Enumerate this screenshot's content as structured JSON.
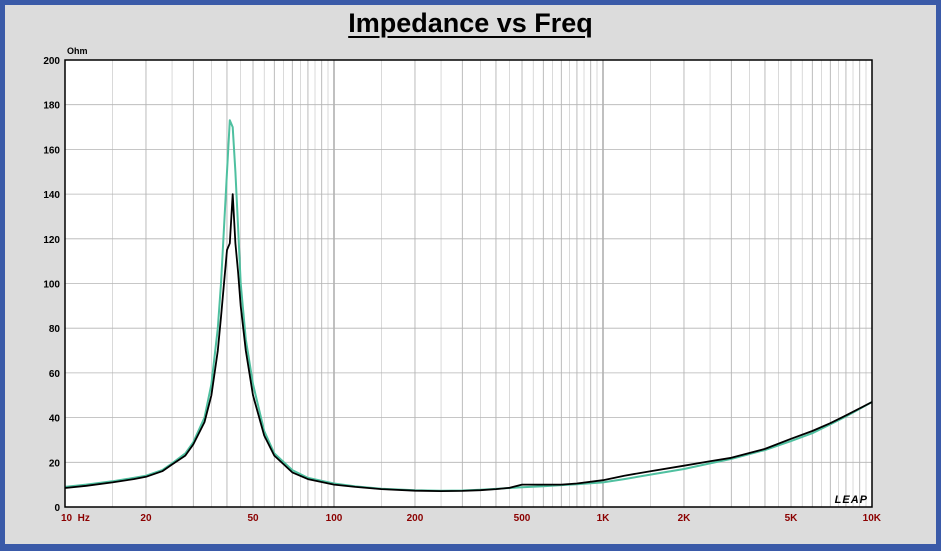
{
  "chart_data": {
    "type": "line",
    "title": "Impedance vs Freq",
    "ylabel": "Ohm",
    "xlabel": "",
    "xscale": "log",
    "xlim": [
      10,
      10000
    ],
    "ylim": [
      0,
      200
    ],
    "grid": true,
    "y_ticks": [
      0,
      20,
      40,
      60,
      80,
      100,
      120,
      140,
      160,
      180,
      200
    ],
    "y_tick_labels": [
      "0",
      "20",
      "40",
      "60",
      "80",
      "100",
      "120",
      "140",
      "160",
      "180",
      "200"
    ],
    "x_ticks": [
      10,
      20,
      50,
      100,
      200,
      500,
      1000,
      2000,
      5000,
      10000
    ],
    "x_tick_labels": [
      "10  Hz",
      "20",
      "50",
      "100",
      "200",
      "500",
      "1K",
      "2K",
      "5K",
      "10K"
    ],
    "logo_text": "LEAP",
    "colors": {
      "frame": "#3a5aa8",
      "plot_background": "#ffffff",
      "grid": "#b4b4b4",
      "x_tick_labels": "#8b0000",
      "series_1": "#000000",
      "series_2": "#4fc0a0"
    },
    "series": [
      {
        "color": "#000000",
        "x": [
          10,
          12,
          15,
          18,
          20,
          23,
          25,
          28,
          30,
          33,
          35,
          37,
          38,
          39,
          40,
          41,
          42,
          43,
          44,
          45,
          47,
          50,
          55,
          60,
          70,
          80,
          100,
          120,
          150,
          200,
          250,
          300,
          350,
          400,
          450,
          500,
          600,
          700,
          800,
          1000,
          1200,
          1500,
          2000,
          2500,
          3000,
          4000,
          5000,
          6000,
          7000,
          8000,
          10000
        ],
        "y": [
          8.5,
          9.5,
          11,
          12.5,
          13.5,
          16,
          19,
          23,
          28,
          38,
          50,
          70,
          85,
          100,
          115,
          118,
          140,
          118,
          105,
          90,
          70,
          50,
          32,
          23,
          15.5,
          12.5,
          10,
          9,
          8,
          7.3,
          7.1,
          7.2,
          7.5,
          8,
          8.6,
          10,
          10,
          10,
          10.5,
          12,
          14,
          16,
          18.5,
          20.5,
          22,
          26,
          30.5,
          34,
          37.5,
          41,
          47
        ]
      },
      {
        "color": "#4fc0a0",
        "x": [
          10,
          12,
          15,
          18,
          20,
          23,
          25,
          28,
          30,
          33,
          35,
          37,
          38,
          39,
          40,
          41,
          42,
          43,
          44,
          45,
          47,
          50,
          55,
          60,
          70,
          80,
          100,
          120,
          150,
          200,
          250,
          300,
          350,
          400,
          450,
          500,
          600,
          700,
          800,
          1000,
          1200,
          1500,
          2000,
          2500,
          3000,
          4000,
          5000,
          6000,
          7000,
          8000,
          10000
        ],
        "y": [
          9,
          10,
          11.5,
          13,
          14,
          16.5,
          19.5,
          24,
          29,
          40,
          55,
          80,
          100,
          125,
          150,
          173,
          170,
          150,
          125,
          100,
          75,
          55,
          34,
          24,
          16.5,
          13,
          10.5,
          9.2,
          8.2,
          7.5,
          7.3,
          7.4,
          7.7,
          8.1,
          8.5,
          8.8,
          9.3,
          9.8,
          10.2,
          11,
          12.5,
          14.5,
          17,
          19.5,
          21.5,
          25.5,
          29.5,
          33,
          37,
          40.5,
          47
        ]
      }
    ]
  }
}
